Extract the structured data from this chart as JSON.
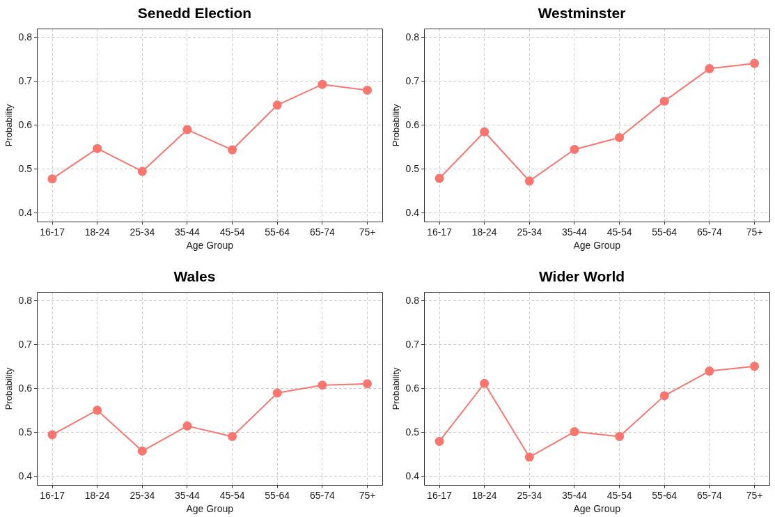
{
  "chart_data": [
    {
      "type": "line",
      "title": "Senedd Election",
      "xlabel": "Age Group",
      "ylabel": "Probability",
      "categories": [
        "16-17",
        "18-24",
        "25-34",
        "35-44",
        "45-54",
        "55-64",
        "65-74",
        "75+"
      ],
      "series": [
        {
          "color": "#f8766d",
          "values": [
            0.478,
            0.547,
            0.495,
            0.59,
            0.544,
            0.646,
            0.693,
            0.68
          ]
        }
      ],
      "ylim": [
        0.38,
        0.82
      ],
      "yticks": [
        0.4,
        0.5,
        0.6,
        0.7,
        0.8
      ],
      "grid": true,
      "marker": "circle",
      "line_style": "solid"
    },
    {
      "type": "line",
      "title": "Westminster",
      "xlabel": "Age Group",
      "ylabel": "Probability",
      "categories": [
        "16-17",
        "18-24",
        "25-34",
        "35-44",
        "45-54",
        "55-64",
        "65-74",
        "75+"
      ],
      "series": [
        {
          "color": "#f8766d",
          "values": [
            0.479,
            0.585,
            0.473,
            0.545,
            0.572,
            0.655,
            0.729,
            0.741
          ]
        }
      ],
      "ylim": [
        0.38,
        0.82
      ],
      "yticks": [
        0.4,
        0.5,
        0.6,
        0.7,
        0.8
      ],
      "grid": true,
      "marker": "circle",
      "line_style": "solid"
    },
    {
      "type": "line",
      "title": "Wales",
      "xlabel": "Age Group",
      "ylabel": "Probability",
      "categories": [
        "16-17",
        "18-24",
        "25-34",
        "35-44",
        "45-54",
        "55-64",
        "65-74",
        "75+"
      ],
      "series": [
        {
          "color": "#f8766d",
          "values": [
            0.495,
            0.551,
            0.458,
            0.515,
            0.491,
            0.59,
            0.608,
            0.611
          ]
        }
      ],
      "ylim": [
        0.38,
        0.82
      ],
      "yticks": [
        0.4,
        0.5,
        0.6,
        0.7,
        0.8
      ],
      "grid": true,
      "marker": "circle",
      "line_style": "solid"
    },
    {
      "type": "line",
      "title": "Wider World",
      "xlabel": "Age Group",
      "ylabel": "Probability",
      "categories": [
        "16-17",
        "18-24",
        "25-34",
        "35-44",
        "45-54",
        "55-64",
        "65-74",
        "75+"
      ],
      "series": [
        {
          "color": "#f8766d",
          "values": [
            0.48,
            0.612,
            0.444,
            0.502,
            0.491,
            0.584,
            0.64,
            0.651
          ]
        }
      ],
      "ylim": [
        0.38,
        0.82
      ],
      "yticks": [
        0.4,
        0.5,
        0.6,
        0.7,
        0.8
      ],
      "grid": true,
      "marker": "circle",
      "line_style": "solid"
    }
  ]
}
